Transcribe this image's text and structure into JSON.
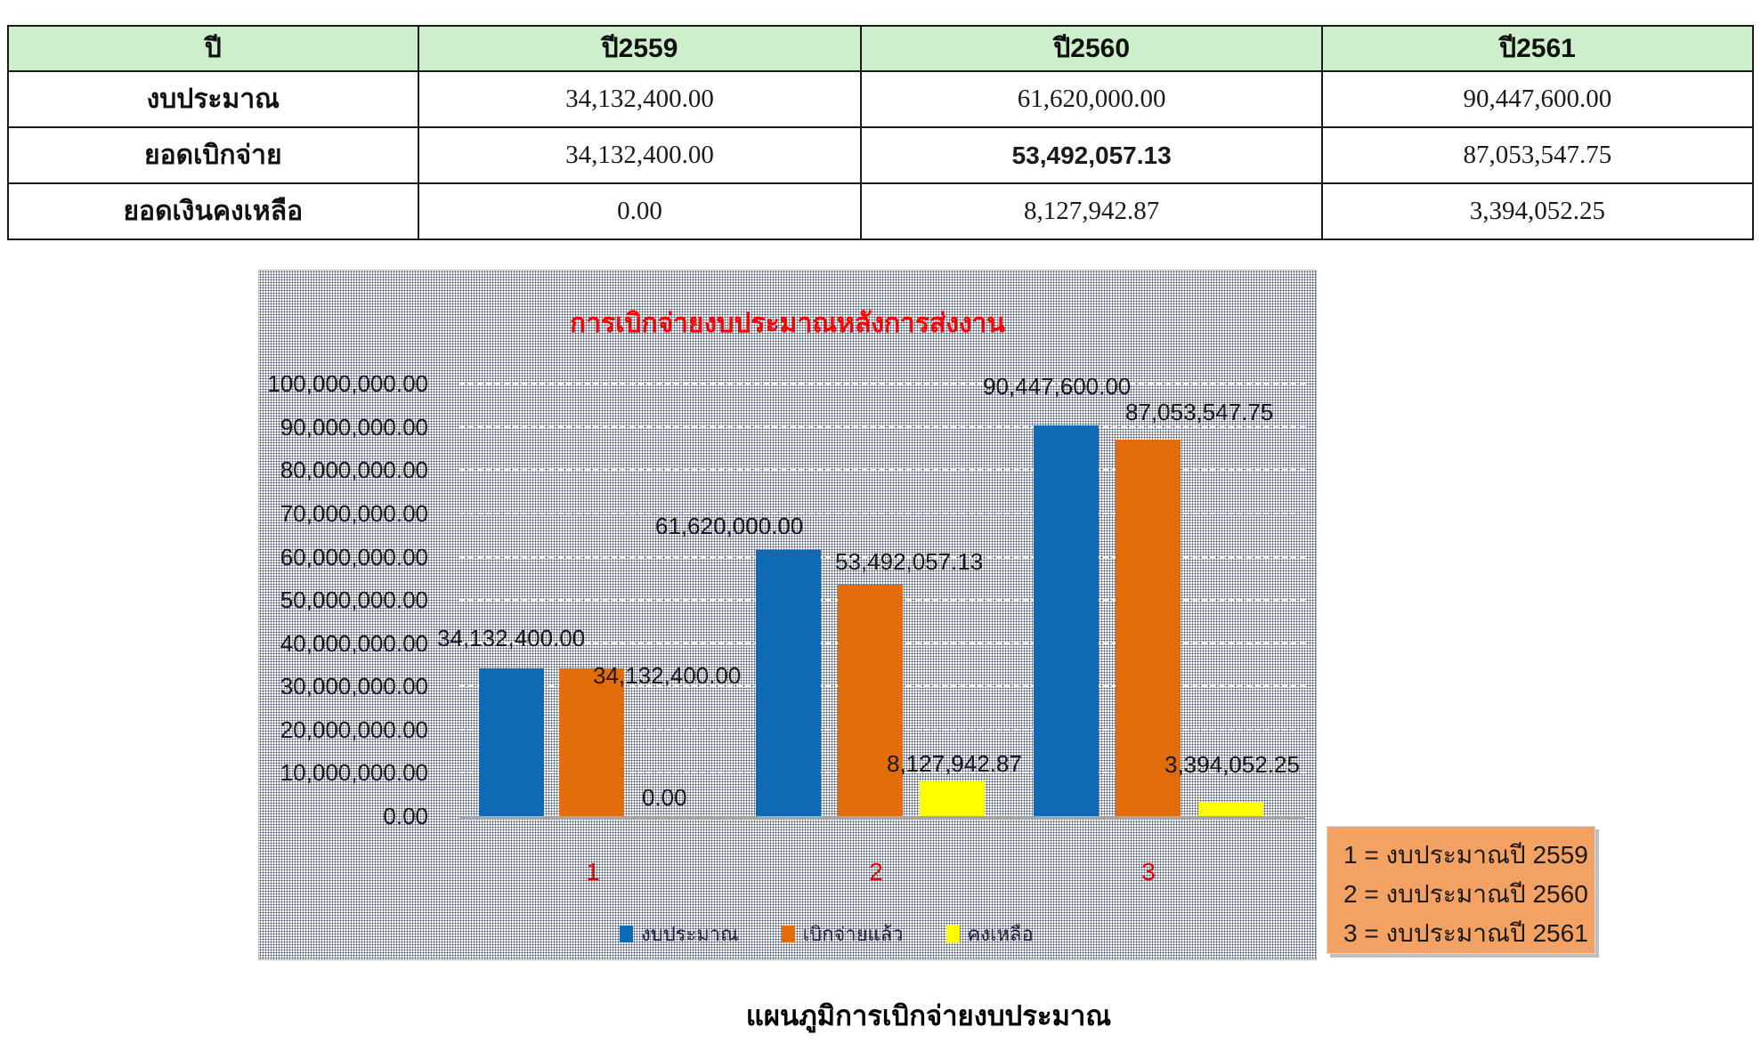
{
  "table": {
    "header": [
      "ปี",
      "ปี2559",
      "ปี2560",
      "ปี2561"
    ],
    "rows": [
      {
        "label": "งบประมาณ",
        "values": [
          "34,132,400.00",
          "61,620,000.00",
          "90,447,600.00"
        ]
      },
      {
        "label": "ยอดเบิกจ่าย",
        "values": [
          "34,132,400.00",
          "53,492,057.13",
          "87,053,547.75"
        ]
      },
      {
        "label": "ยอดเงินคงเหลือ",
        "values": [
          "0.00",
          "8,127,942.87",
          "3,394,052.25"
        ]
      }
    ]
  },
  "chart_data": {
    "type": "bar",
    "title": "การเบิกจ่ายงบประมาณหลังการส่งงาน",
    "title_color": "#ff0000",
    "categories": [
      "1",
      "2",
      "3"
    ],
    "category_label_color": "#e00000",
    "series": [
      {
        "name": "งบประมาณ",
        "color": "#1069b4",
        "values": [
          34132400,
          61620000,
          90447600
        ],
        "labels": [
          "34,132,400.00",
          "61,620,000.00",
          "90,447,600.00"
        ]
      },
      {
        "name": "เบิกจ่ายแล้ว",
        "color": "#e26b0a",
        "values": [
          34132400,
          53492057.13,
          87053547.75
        ],
        "labels": [
          "34,132,400.00",
          "53,492,057.13",
          "87,053,547.75"
        ]
      },
      {
        "name": "คงเหลือ",
        "color": "#ffff00",
        "values": [
          0,
          8127942.87,
          3394052.25
        ],
        "labels": [
          "0.00",
          "8,127,942.87",
          "3,394,052.25"
        ]
      }
    ],
    "ylim": [
      0,
      100000000
    ],
    "ytick_step": 10000000,
    "ytick_labels": [
      "0.00",
      "10,000,000.00",
      "20,000,000.00",
      "30,000,000.00",
      "40,000,000.00",
      "50,000,000.00",
      "60,000,000.00",
      "70,000,000.00",
      "80,000,000.00",
      "90,000,000.00",
      "100,000,000.00"
    ],
    "grid": "horizontal white dashed",
    "legend_position": "bottom-center",
    "plot_background": "gray dotted halftone"
  },
  "note_box": {
    "background": "#f4a263",
    "lines": [
      "1 = งบประมาณปี 2559",
      "2 = งบประมาณปี 2560",
      "3 = งบประมาณปี 2561"
    ]
  },
  "caption": "แผนภูมิการเบิกจ่ายงบประมาณ",
  "colors": {
    "table_header_green": "#cdefcb",
    "series_budget_blue": "#1069b4",
    "series_spent_orange": "#e26b0a",
    "series_remain_yellow": "#ffff00",
    "chart_title_red": "#ff0000",
    "note_box_orange": "#f4a263"
  }
}
